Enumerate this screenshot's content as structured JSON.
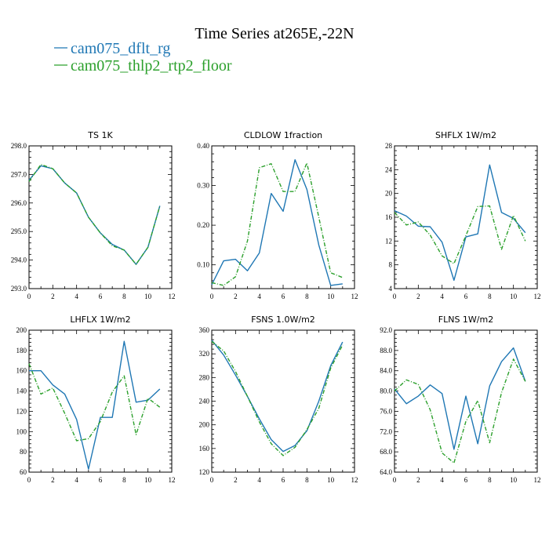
{
  "figure": {
    "title": "Time Series at265E,-22N",
    "legend": [
      {
        "label": "cam075_dflt_rg",
        "color": "#1f77b4"
      },
      {
        "label": "cam075_thlp2_rtp2_floor",
        "color": "#2ca02c"
      }
    ]
  },
  "colors": {
    "series1": "#1f77b4",
    "series2": "#2ca02c"
  },
  "chart_data": [
    {
      "type": "line",
      "title": "TS   1K",
      "x": [
        0,
        1,
        2,
        3,
        4,
        5,
        6,
        7,
        8,
        9,
        10,
        11
      ],
      "xlim": [
        0,
        12
      ],
      "xticks": [
        0,
        2,
        4,
        6,
        8,
        10,
        12
      ],
      "ylim": [
        293,
        298
      ],
      "yticks": [
        293,
        294,
        295,
        296,
        297,
        298
      ],
      "ytick_labels": [
        "293.0",
        "294.0",
        "295.0",
        "296.0",
        "297.0",
        "298.0"
      ],
      "series": [
        {
          "name": "cam075_dflt_rg",
          "values": [
            296.8,
            297.3,
            297.2,
            296.7,
            296.35,
            295.5,
            294.95,
            294.55,
            294.35,
            293.85,
            294.45,
            295.9
          ]
        },
        {
          "name": "cam075_thlp2_rtp2_floor",
          "values": [
            296.75,
            297.35,
            297.2,
            296.7,
            296.35,
            295.5,
            294.95,
            294.5,
            294.35,
            293.85,
            294.45,
            295.9
          ]
        }
      ]
    },
    {
      "type": "line",
      "title": "CLDLOW   1fraction",
      "x": [
        0,
        1,
        2,
        3,
        4,
        5,
        6,
        7,
        8,
        9,
        10,
        11
      ],
      "xlim": [
        0,
        12
      ],
      "xticks": [
        0,
        2,
        4,
        6,
        8,
        10,
        12
      ],
      "ylim": [
        0.04,
        0.4
      ],
      "yticks": [
        0.1,
        0.2,
        0.3,
        0.4
      ],
      "ytick_labels": [
        "0.10",
        "0.20",
        "0.30",
        "0.40"
      ],
      "series": [
        {
          "name": "cam075_dflt_rg",
          "values": [
            0.05,
            0.11,
            0.114,
            0.085,
            0.13,
            0.28,
            0.235,
            0.365,
            0.29,
            0.15,
            0.048,
            0.052
          ]
        },
        {
          "name": "cam075_thlp2_rtp2_floor",
          "values": [
            0.055,
            0.048,
            0.07,
            0.16,
            0.345,
            0.355,
            0.285,
            0.285,
            0.357,
            0.22,
            0.08,
            0.068
          ]
        }
      ]
    },
    {
      "type": "line",
      "title": "SHFLX   1W/m2",
      "x": [
        0,
        1,
        2,
        3,
        4,
        5,
        6,
        7,
        8,
        9,
        10,
        11
      ],
      "xlim": [
        0,
        12
      ],
      "xticks": [
        0,
        2,
        4,
        6,
        8,
        10,
        12
      ],
      "ylim": [
        4,
        28
      ],
      "yticks": [
        4,
        8,
        12,
        16,
        20,
        24,
        28
      ],
      "ytick_labels": [
        "4",
        "8",
        "12",
        "16",
        "20",
        "24",
        "28"
      ],
      "series": [
        {
          "name": "cam075_dflt_rg",
          "values": [
            17.1,
            16.2,
            14.5,
            14.4,
            11.8,
            5.4,
            12.7,
            13.2,
            24.8,
            16.8,
            15.8,
            13.4
          ]
        },
        {
          "name": "cam075_thlp2_rtp2_floor",
          "values": [
            16.8,
            14.7,
            15.2,
            13.0,
            9.5,
            8.2,
            12.9,
            17.8,
            17.9,
            10.6,
            16.3,
            12.0
          ]
        }
      ]
    },
    {
      "type": "line",
      "title": "LHFLX   1W/m2",
      "x": [
        0,
        1,
        2,
        3,
        4,
        5,
        6,
        7,
        8,
        9,
        10,
        11
      ],
      "xlim": [
        0,
        12
      ],
      "xticks": [
        0,
        2,
        4,
        6,
        8,
        10,
        12
      ],
      "ylim": [
        60,
        200
      ],
      "yticks": [
        60,
        80,
        100,
        120,
        140,
        160,
        180,
        200
      ],
      "ytick_labels": [
        "60",
        "80",
        "100",
        "120",
        "140",
        "160",
        "180",
        "200"
      ],
      "series": [
        {
          "name": "cam075_dflt_rg",
          "values": [
            160,
            160,
            146,
            137,
            112,
            63,
            114,
            114,
            189,
            129,
            131,
            142
          ]
        },
        {
          "name": "cam075_thlp2_rtp2_floor",
          "values": [
            167,
            137,
            143,
            118,
            91,
            93,
            110,
            139,
            155,
            97,
            133,
            124
          ]
        }
      ]
    },
    {
      "type": "line",
      "title": "FSNS   1.0W/m2",
      "x": [
        0,
        1,
        2,
        3,
        4,
        5,
        6,
        7,
        8,
        9,
        10,
        11
      ],
      "xlim": [
        0,
        12
      ],
      "xticks": [
        0,
        2,
        4,
        6,
        8,
        10,
        12
      ],
      "ylim": [
        120,
        360
      ],
      "yticks": [
        120,
        160,
        200,
        240,
        280,
        320,
        360
      ],
      "ytick_labels": [
        "120",
        "160",
        "200",
        "240",
        "280",
        "320",
        "360"
      ],
      "series": [
        {
          "name": "cam075_dflt_rg",
          "values": [
            343,
            318,
            284,
            248,
            210,
            175,
            155,
            165,
            190,
            240,
            300,
            340
          ]
        },
        {
          "name": "cam075_thlp2_rtp2_floor",
          "values": [
            341,
            325,
            290,
            248,
            205,
            168,
            148,
            162,
            192,
            228,
            296,
            335
          ]
        }
      ]
    },
    {
      "type": "line",
      "title": "FLNS   1W/m2",
      "x": [
        0,
        1,
        2,
        3,
        4,
        5,
        6,
        7,
        8,
        9,
        10,
        11
      ],
      "xlim": [
        0,
        12
      ],
      "xticks": [
        0,
        2,
        4,
        6,
        8,
        10,
        12
      ],
      "ylim": [
        64,
        92
      ],
      "yticks": [
        64,
        68,
        72,
        76,
        80,
        84,
        88,
        92
      ],
      "ytick_labels": [
        "64.0",
        "68.0",
        "72.0",
        "76.0",
        "80.0",
        "84.0",
        "88.0",
        "92.0"
      ],
      "series": [
        {
          "name": "cam075_dflt_rg",
          "values": [
            80.4,
            77.5,
            79.0,
            81.2,
            79.5,
            68.5,
            79.0,
            69.6,
            81.0,
            85.8,
            88.5,
            81.9
          ]
        },
        {
          "name": "cam075_thlp2_rtp2_floor",
          "values": [
            80.0,
            82.2,
            81.3,
            76.3,
            67.8,
            65.8,
            74.0,
            78.1,
            69.8,
            79.7,
            86.3,
            81.9
          ]
        }
      ]
    }
  ]
}
